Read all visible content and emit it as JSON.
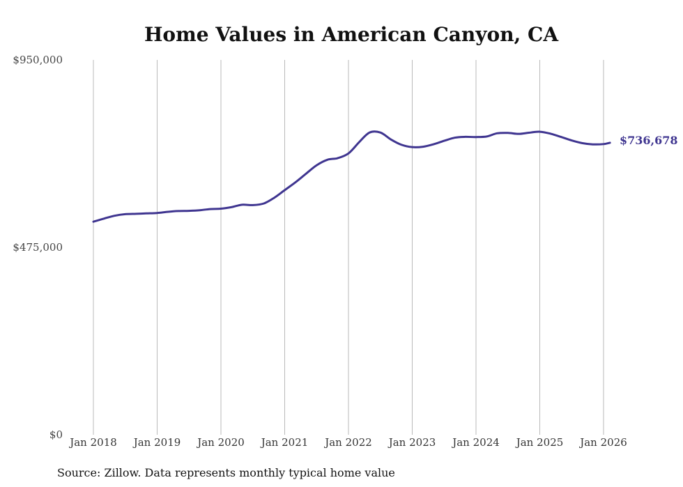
{
  "chart_data": {
    "type": "line",
    "title": "Home Values in American Canyon, CA",
    "xlabel": "",
    "ylabel": "",
    "ylim": [
      0,
      950000
    ],
    "y_ticks": [
      {
        "value": 0,
        "label": "$0"
      },
      {
        "value": 475000,
        "label": "$475,000"
      },
      {
        "value": 950000,
        "label": "$950,000"
      }
    ],
    "x_range": [
      2018.0,
      2026.1
    ],
    "x_ticks": [
      {
        "value": 2018,
        "label": "Jan 2018"
      },
      {
        "value": 2019,
        "label": "Jan 2019"
      },
      {
        "value": 2020,
        "label": "Jan 2020"
      },
      {
        "value": 2021,
        "label": "Jan 2021"
      },
      {
        "value": 2022,
        "label": "Jan 2022"
      },
      {
        "value": 2023,
        "label": "Jan 2023"
      },
      {
        "value": 2024,
        "label": "Jan 2024"
      },
      {
        "value": 2025,
        "label": "Jan 2025"
      },
      {
        "value": 2026,
        "label": "Jan 2026"
      }
    ],
    "grid": "vertical",
    "series": [
      {
        "name": "Typical home value",
        "color": "#3f3590",
        "points": [
          [
            2018.0,
            540000
          ],
          [
            2018.17,
            548000
          ],
          [
            2018.33,
            555000
          ],
          [
            2018.5,
            559000
          ],
          [
            2018.67,
            560000
          ],
          [
            2018.83,
            561000
          ],
          [
            2019.0,
            562000
          ],
          [
            2019.17,
            565000
          ],
          [
            2019.33,
            567000
          ],
          [
            2019.5,
            567500
          ],
          [
            2019.67,
            569000
          ],
          [
            2019.83,
            572000
          ],
          [
            2020.0,
            573000
          ],
          [
            2020.17,
            577000
          ],
          [
            2020.33,
            583000
          ],
          [
            2020.5,
            582000
          ],
          [
            2020.67,
            586000
          ],
          [
            2020.83,
            600000
          ],
          [
            2021.0,
            620000
          ],
          [
            2021.17,
            640000
          ],
          [
            2021.33,
            661000
          ],
          [
            2021.5,
            683000
          ],
          [
            2021.67,
            697000
          ],
          [
            2021.83,
            701000
          ],
          [
            2022.0,
            713000
          ],
          [
            2022.17,
            742000
          ],
          [
            2022.33,
            766000
          ],
          [
            2022.5,
            766000
          ],
          [
            2022.67,
            748000
          ],
          [
            2022.83,
            735000
          ],
          [
            2023.0,
            729000
          ],
          [
            2023.17,
            730000
          ],
          [
            2023.33,
            736000
          ],
          [
            2023.5,
            745000
          ],
          [
            2023.67,
            753000
          ],
          [
            2023.83,
            755000
          ],
          [
            2024.0,
            754500
          ],
          [
            2024.17,
            756000
          ],
          [
            2024.33,
            764000
          ],
          [
            2024.5,
            765000
          ],
          [
            2024.67,
            762500
          ],
          [
            2024.83,
            765500
          ],
          [
            2025.0,
            768000
          ],
          [
            2025.17,
            763000
          ],
          [
            2025.33,
            755000
          ],
          [
            2025.5,
            746000
          ],
          [
            2025.67,
            739000
          ],
          [
            2025.83,
            736000
          ],
          [
            2026.0,
            736678
          ],
          [
            2026.1,
            740000
          ]
        ]
      }
    ],
    "end_label": "$736,678",
    "source_note": "Source: Zillow. Data represents monthly typical home value"
  }
}
